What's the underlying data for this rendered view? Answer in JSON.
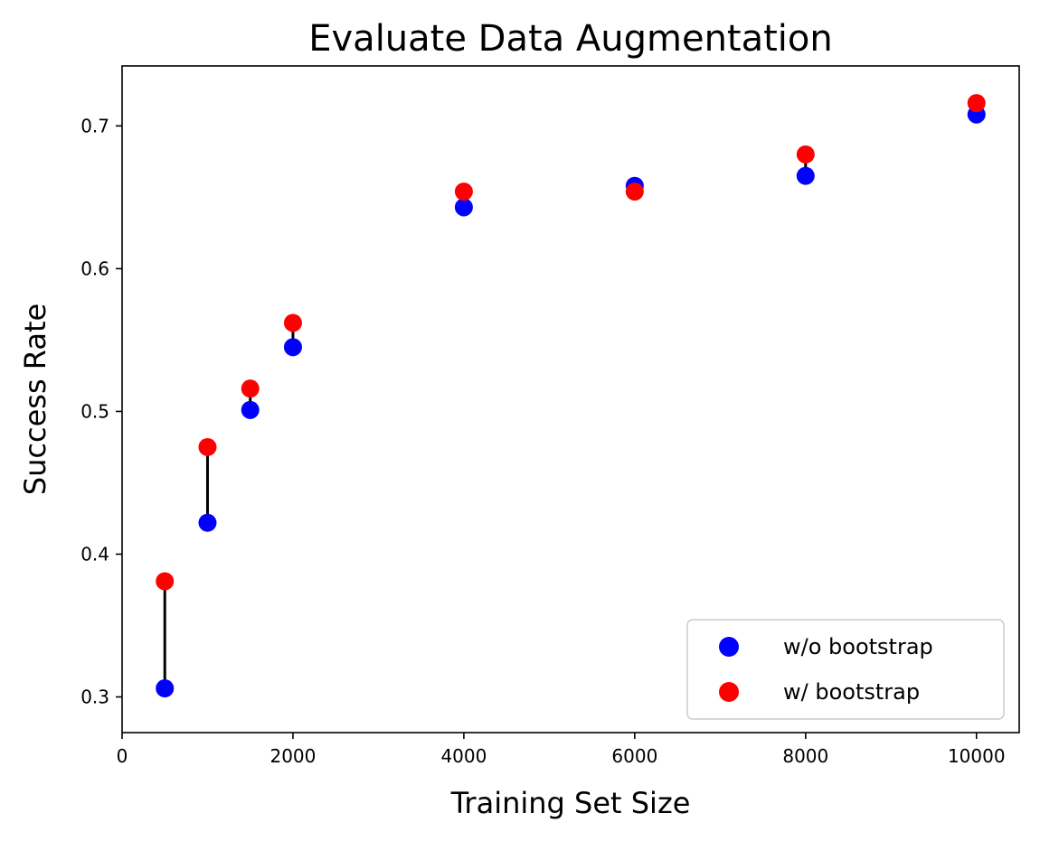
{
  "chart_data": {
    "type": "scatter",
    "title": "Evaluate Data Augmentation",
    "xlabel": "Training Set Size",
    "ylabel": "Success Rate",
    "xlim": [
      0,
      10500
    ],
    "ylim": [
      0.275,
      0.742
    ],
    "x_ticks": [
      0,
      2000,
      4000,
      6000,
      8000,
      10000
    ],
    "y_ticks": [
      0.3,
      0.4,
      0.5,
      0.6,
      0.7
    ],
    "x_tick_labels": [
      "0",
      "2000",
      "4000",
      "6000",
      "8000",
      "10000"
    ],
    "y_tick_labels": [
      "0.3",
      "0.4",
      "0.5",
      "0.6",
      "0.7"
    ],
    "x": [
      500,
      1000,
      1500,
      2000,
      4000,
      6000,
      8000,
      10000
    ],
    "series": [
      {
        "name": "w/o bootstrap",
        "color": "#0000ff",
        "values": [
          0.306,
          0.422,
          0.501,
          0.545,
          0.643,
          0.658,
          0.665,
          0.708
        ]
      },
      {
        "name": "w/ bootstrap",
        "color": "#ff0000",
        "values": [
          0.381,
          0.475,
          0.516,
          0.562,
          0.654,
          0.654,
          0.68,
          0.716
        ]
      }
    ],
    "connector_color": "#000000",
    "grid": false,
    "legend_position": "lower-right"
  }
}
